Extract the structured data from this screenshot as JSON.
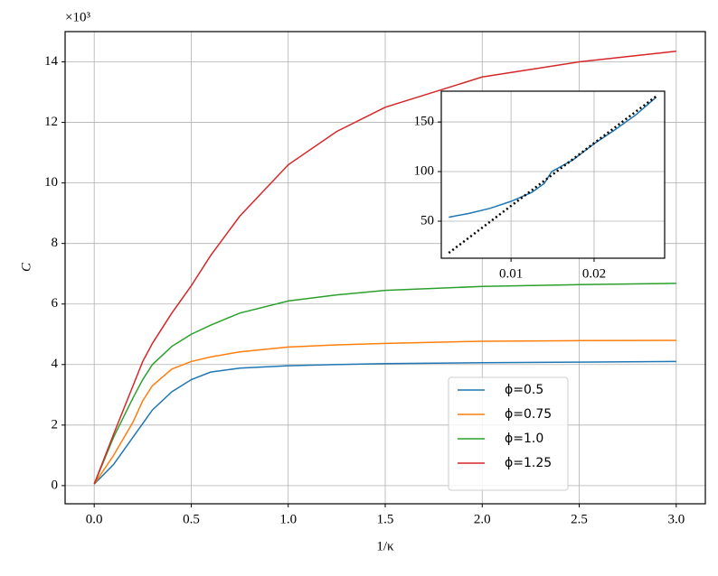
{
  "chart_data": [
    {
      "type": "line",
      "xlabel": "1/κ",
      "ylabel": "C",
      "y_offset_label": "×10³",
      "x": [
        0,
        0.1,
        0.2,
        0.25,
        0.3,
        0.4,
        0.5,
        0.6,
        0.75,
        1.0,
        1.25,
        1.5,
        2.0,
        2.5,
        3.0
      ],
      "series": [
        {
          "name": "ϕ=0.5",
          "color": "#1f77b4",
          "values": [
            0.05,
            0.7,
            1.6,
            2.05,
            2.5,
            3.1,
            3.5,
            3.75,
            3.88,
            3.96,
            4.0,
            4.03,
            4.06,
            4.08,
            4.1
          ]
        },
        {
          "name": "ϕ=0.75",
          "color": "#ff7f0e",
          "values": [
            0.05,
            1.0,
            2.1,
            2.8,
            3.3,
            3.85,
            4.1,
            4.25,
            4.42,
            4.58,
            4.65,
            4.7,
            4.77,
            4.79,
            4.8
          ]
        },
        {
          "name": "ϕ=1.0",
          "color": "#2ca02c",
          "values": [
            0.05,
            1.6,
            2.9,
            3.5,
            4.0,
            4.6,
            5.0,
            5.3,
            5.7,
            6.1,
            6.3,
            6.45,
            6.58,
            6.64,
            6.68
          ]
        },
        {
          "name": "ϕ=1.25",
          "color": "#d62728",
          "values": [
            0.05,
            1.7,
            3.3,
            4.1,
            4.7,
            5.7,
            6.6,
            7.6,
            8.9,
            10.6,
            11.7,
            12.5,
            13.5,
            14.0,
            14.35
          ]
        }
      ],
      "xlim": [
        -0.15,
        3.15
      ],
      "ylim": [
        -0.6,
        15.0
      ],
      "xticks": [
        {
          "value": 0,
          "label": "0.0"
        },
        0.5,
        {
          "value": 1,
          "label": "1.0"
        },
        1.5,
        {
          "value": 2,
          "label": "2.0"
        },
        2.5,
        {
          "value": 3,
          "label": "3.0"
        }
      ],
      "yticks": [
        0,
        2,
        4,
        6,
        8,
        10,
        12,
        14
      ],
      "grid": true,
      "legend_loc": "lower right"
    },
    {
      "type": "line",
      "series": [
        {
          "color": "#1f77b4",
          "dash": "solid",
          "x": [
            0.0025,
            0.005,
            0.0075,
            0.01,
            0.0125,
            0.014,
            0.0149,
            0.0175,
            0.02,
            0.0225,
            0.025,
            0.0275
          ],
          "values": [
            54,
            58,
            63,
            70,
            79,
            88,
            100,
            112,
            128,
            142,
            157,
            175
          ]
        },
        {
          "color": "#000000",
          "dash": "dotted",
          "x": [
            0.0025,
            0.0275
          ],
          "values": [
            18,
            176
          ]
        }
      ],
      "xlim": [
        0.0016,
        0.0285
      ],
      "ylim": [
        12.7,
        181
      ],
      "xticks": [
        0.01,
        0.02
      ],
      "yticks": [
        50,
        100,
        150
      ],
      "grid": true
    }
  ]
}
